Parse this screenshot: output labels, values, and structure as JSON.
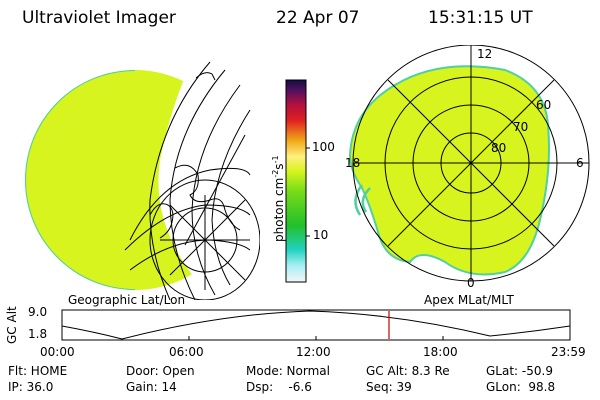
{
  "header": {
    "title": "Ultraviolet Imager",
    "date": "22 Apr 07",
    "time": "15:31:15 UT"
  },
  "left_panel": {
    "label": "Geographic Lat/Lon"
  },
  "right_panel": {
    "label": "Apex MLat/MLT",
    "lat_labels": [
      "60",
      "70",
      "80"
    ],
    "mlt_labels": [
      "12",
      "18",
      "6",
      "0"
    ]
  },
  "colorbar": {
    "title": "photon cm",
    "title_sup1": "-2",
    "title_mid": "s",
    "title_sup2": "-1",
    "ticks": [
      "100",
      "10"
    ]
  },
  "altplot": {
    "ylabel": "GC Alt",
    "ymax": "9.0",
    "ymin": "1.8",
    "xticks": [
      "00:00",
      "06:00",
      "12:00",
      "18:00",
      "23:59"
    ]
  },
  "info": {
    "flt": "Flt: HOME",
    "ip": "IP: 36.0",
    "door": "Door: Open",
    "gain": "Gain: 14",
    "mode": "Mode: Normal",
    "dsp": "Dsp:    -6.6",
    "gcalt": "GC Alt: 8.3 Re",
    "seq": "Seq: 39",
    "glat": "GLat: -50.9",
    "glon": "GLon:  98.8"
  },
  "colors": {
    "earth_fill": "#d8f41e",
    "earth_edge": "#4fd0a0",
    "cursor": "#cc0000"
  }
}
